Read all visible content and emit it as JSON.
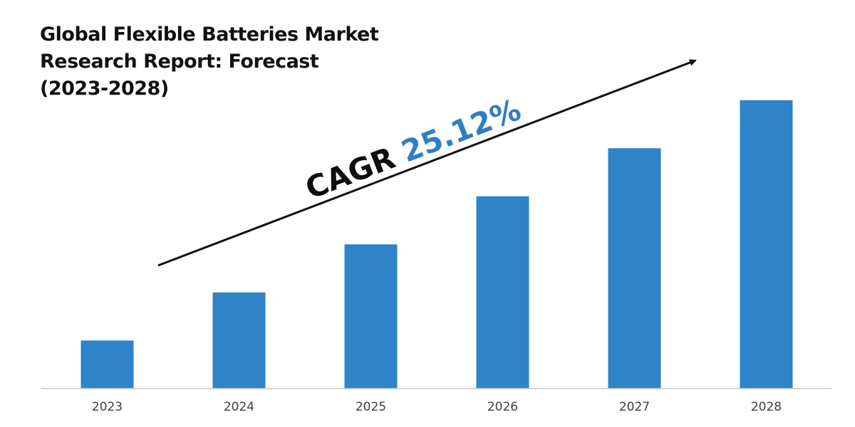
{
  "title_lines": [
    "Global Flexible Batteries Market",
    "Research Report: Forecast",
    "(2023-2028)"
  ],
  "cagr": {
    "label": "CAGR",
    "value": "25.12%"
  },
  "colors": {
    "bar": "#2e84c6",
    "axis": "#c8c8c8",
    "arrow": "#111111",
    "cagr_value": "#2e7fc2"
  },
  "chart_data": {
    "type": "bar",
    "title": "Global Flexible Batteries Market Research Report: Forecast (2023-2028)",
    "categories": [
      "2023",
      "2024",
      "2025",
      "2026",
      "2027",
      "2028"
    ],
    "values": [
      1,
      2,
      3,
      4,
      5,
      6
    ],
    "xlabel": "",
    "ylabel": "",
    "ylim": [
      0,
      6.1
    ],
    "grid": false,
    "legend": "none",
    "annotation": "CAGR 25.12%"
  }
}
